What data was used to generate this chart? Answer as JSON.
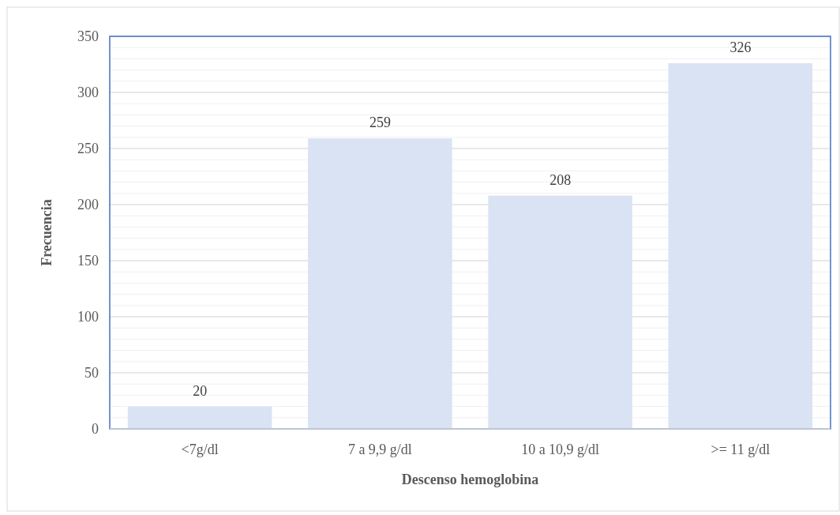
{
  "chart_data": {
    "type": "bar",
    "xlabel": "Descenso hemoglobina",
    "ylabel": "Frecuencia",
    "categories": [
      "<7g/dl",
      "7 a 9,9 g/dl",
      "10 a 10,9 g/dl",
      ">= 11 g/dl"
    ],
    "values": [
      20,
      259,
      208,
      326
    ],
    "color": "#dae3f3",
    "ylim": [
      0,
      350
    ],
    "yticks": [
      0,
      50,
      100,
      150,
      200,
      250,
      300,
      350
    ],
    "grid": "y",
    "data_labels": true
  }
}
